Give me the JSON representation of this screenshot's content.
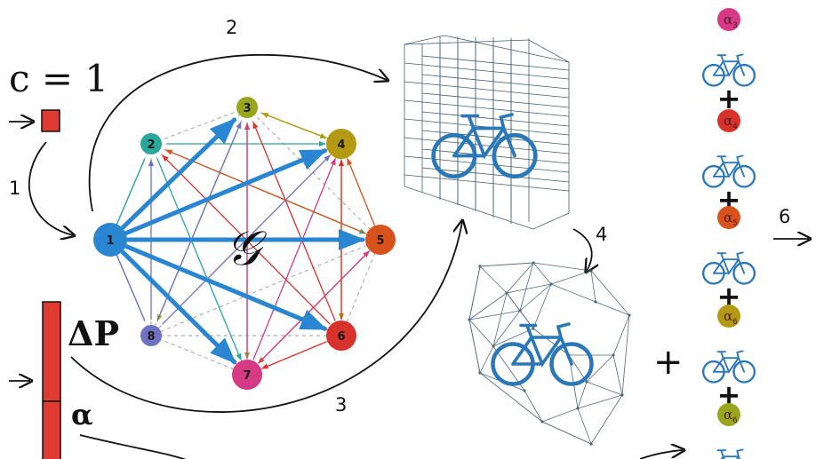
{
  "condition": {
    "text": "c = 1"
  },
  "input_labels": {
    "delta_p": "ΔP",
    "alpha": "α"
  },
  "graph": {
    "symbol": "𝒢",
    "nodes": [
      {
        "id": "1",
        "label": "1",
        "color": "#2a86d1"
      },
      {
        "id": "2",
        "label": "2",
        "color": "#2aa79b"
      },
      {
        "id": "3",
        "label": "3",
        "color": "#9aa51e"
      },
      {
        "id": "4",
        "label": "4",
        "color": "#b49a12"
      },
      {
        "id": "5",
        "label": "5",
        "color": "#d8521c"
      },
      {
        "id": "6",
        "label": "6",
        "color": "#d8322c"
      },
      {
        "id": "7",
        "label": "7",
        "color": "#d63a84"
      },
      {
        "id": "8",
        "label": "8",
        "color": "#6f72c2"
      }
    ]
  },
  "steps": [
    "1",
    "2",
    "3",
    "4",
    "6"
  ],
  "plus_sign": "+",
  "weights": [
    {
      "symbol": "α",
      "sub": "3",
      "color": "#d63a84"
    },
    {
      "symbol": "α",
      "sub": "4",
      "color": "#d8322c"
    },
    {
      "symbol": "α",
      "sub": "5",
      "color": "#d8521c"
    },
    {
      "symbol": "α",
      "sub": "6",
      "color": "#b49a12"
    },
    {
      "symbol": "α",
      "sub": "6",
      "color": "#9aa51e"
    }
  ],
  "colors": {
    "input_bar": "#e03b33",
    "bike": "#2b78b8",
    "arrow": "#2a86d1"
  }
}
